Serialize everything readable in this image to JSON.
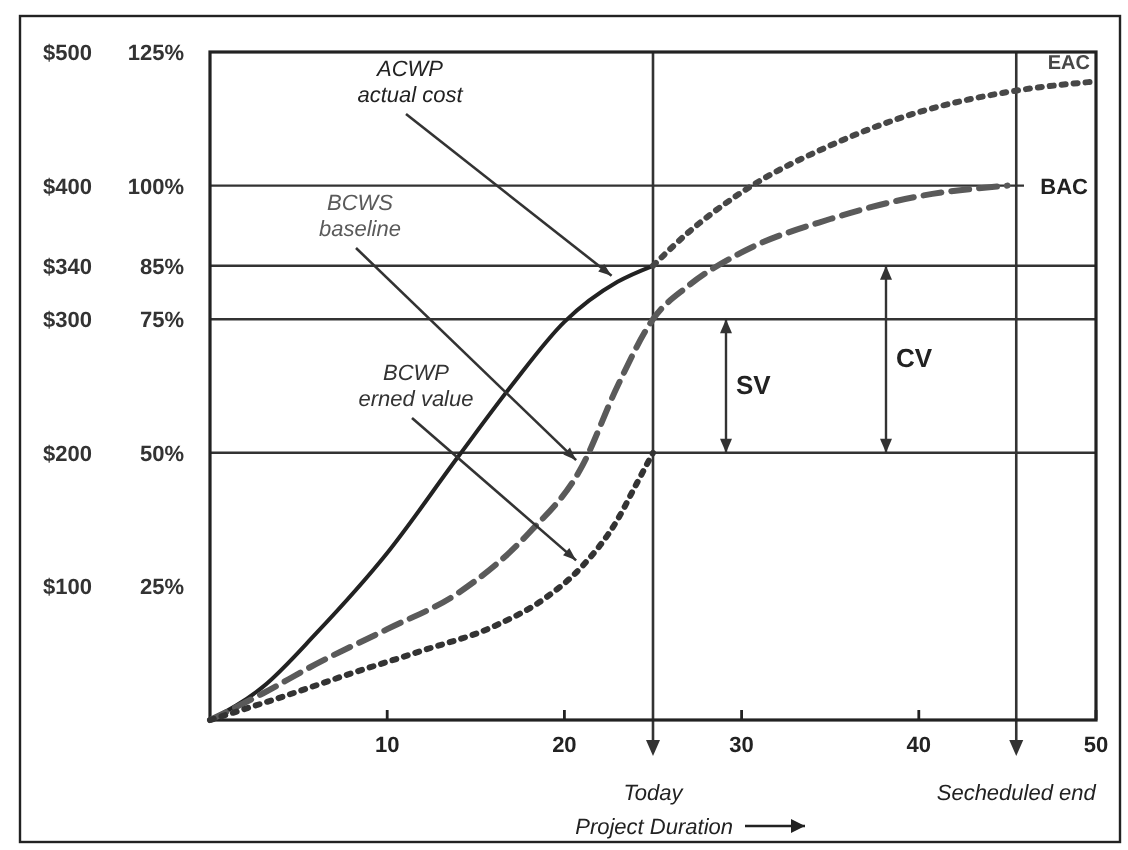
{
  "chart_data": {
    "type": "line",
    "xlabel": "Project Duration",
    "xlim": [
      0,
      50
    ],
    "xticks": [
      10,
      20,
      30,
      40,
      50
    ],
    "ylim": [
      0,
      500
    ],
    "yticks": [
      {
        "value": 100,
        "label": "$100"
      },
      {
        "value": 200,
        "label": "$200"
      },
      {
        "value": 300,
        "label": "$300"
      },
      {
        "value": 340,
        "label": "$340"
      },
      {
        "value": 400,
        "label": "$400"
      },
      {
        "value": 500,
        "label": "$500"
      }
    ],
    "y2lim": [
      0,
      125
    ],
    "y2ticks": [
      {
        "value": 25,
        "label": "25%"
      },
      {
        "value": 50,
        "label": "50%"
      },
      {
        "value": 75,
        "label": "75%"
      },
      {
        "value": 85,
        "label": "85%"
      },
      {
        "value": 100,
        "label": "100%"
      },
      {
        "value": 125,
        "label": "125%"
      }
    ],
    "grid": false,
    "marker": "none",
    "series": [
      {
        "name": "ACWP\nactual cost",
        "color": "#222222",
        "line_style": "solid",
        "x": [
          0,
          3,
          6,
          10,
          14,
          17,
          20,
          23,
          25
        ],
        "values": [
          0,
          25,
          65,
          125,
          197,
          250,
          298,
          328,
          340
        ]
      },
      {
        "name": "BCWS\nbaseline",
        "color": "#5a5a5a",
        "line_style": "dashed",
        "x": [
          0,
          3,
          6,
          10,
          14,
          18,
          21,
          23,
          25,
          27,
          30,
          35,
          40,
          45
        ],
        "values": [
          0,
          20,
          42,
          68,
          95,
          140,
          190,
          250,
          300,
          325,
          350,
          375,
          392,
          400
        ]
      },
      {
        "name": "BCWP\nerned value",
        "color": "#333333",
        "line_style": "dotted",
        "x": [
          0,
          4,
          8,
          12,
          16,
          19,
          21,
          23,
          24,
          25
        ],
        "values": [
          0,
          17,
          35,
          52,
          70,
          92,
          115,
          150,
          175,
          200
        ]
      },
      {
        "name": "EAC",
        "color": "#474747",
        "line_style": "dotted",
        "x": [
          25,
          27,
          30,
          35,
          40,
          45,
          50
        ],
        "values": [
          340,
          365,
          395,
          430,
          455,
          470,
          478
        ]
      }
    ],
    "ref_lines": [
      {
        "axis": "y",
        "value": 400,
        "label": "BAC"
      },
      {
        "axis": "y",
        "value": 340
      },
      {
        "axis": "y",
        "value": 300
      },
      {
        "axis": "y",
        "value": 200
      },
      {
        "axis": "x",
        "value": 25,
        "label": "Today"
      },
      {
        "axis": "x",
        "value": 45.5,
        "label": "Secheduled end"
      }
    ],
    "annotations": [
      "SV",
      "CV"
    ]
  }
}
